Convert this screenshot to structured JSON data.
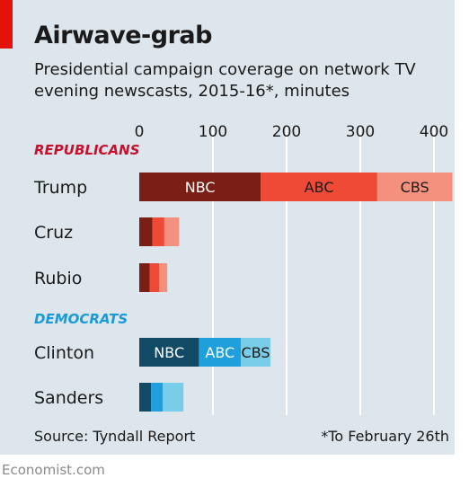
{
  "title": "Airwave-grab",
  "subtitle": "Presidential campaign coverage on network TV evening newscasts, 2015-16*, minutes",
  "source": "Source: Tyndall Report",
  "footnote": "*To February 26th",
  "brand": "Economist.com",
  "colors": {
    "panel_bg": "#dde6ec",
    "accent": "#e3120b",
    "gridline": "#ffffff",
    "rep_nbc": "#7b1f16",
    "rep_abc": "#ef4a35",
    "rep_cbs": "#f3917e",
    "dem_nbc": "#124a66",
    "dem_abc": "#1f9fdb",
    "dem_cbs": "#79cde8",
    "republicans_label": "#c8102e",
    "democrats_label": "#1a9ad6"
  },
  "chart_data": {
    "type": "bar",
    "orientation": "horizontal",
    "stacked": true,
    "xlim": [
      0,
      430
    ],
    "x_ticks": [
      "0",
      "100",
      "200",
      "300",
      "400"
    ],
    "grid": true,
    "series_names": [
      "NBC",
      "ABC",
      "CBS"
    ],
    "groups": [
      {
        "label": "REPUBLICANS",
        "palette": "rep",
        "rows": [
          {
            "name": "Trump",
            "values": [
              165,
              158,
              102
            ],
            "segment_labels": [
              "NBC",
              "ABC",
              "CBS"
            ]
          },
          {
            "name": "Cruz",
            "values": [
              18,
              16,
              20
            ],
            "segment_labels": [
              "",
              "",
              ""
            ]
          },
          {
            "name": "Rubio",
            "values": [
              14,
              13,
              11
            ],
            "segment_labels": [
              "",
              "",
              ""
            ]
          }
        ]
      },
      {
        "label": "DEMOCRATS",
        "palette": "dem",
        "rows": [
          {
            "name": "Clinton",
            "values": [
              81,
              57,
              40
            ],
            "segment_labels": [
              "NBC",
              "ABC",
              "CBS"
            ]
          },
          {
            "name": "Sanders",
            "values": [
              16,
              16,
              28
            ],
            "segment_labels": [
              "",
              "",
              ""
            ]
          }
        ]
      }
    ]
  }
}
